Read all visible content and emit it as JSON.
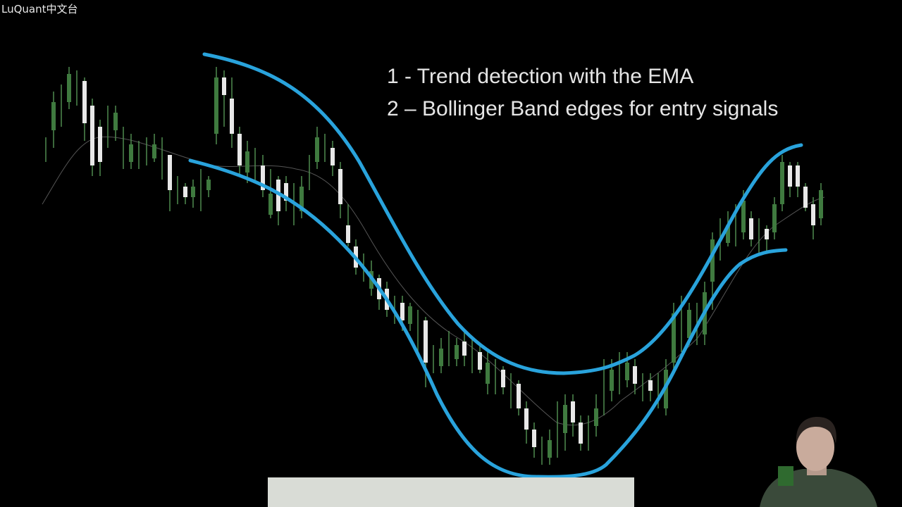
{
  "watermark": "LuQuant中文台",
  "points": [
    "1 - Trend detection with the EMA",
    "2 – Bollinger Band edges for entry signals"
  ]
}
